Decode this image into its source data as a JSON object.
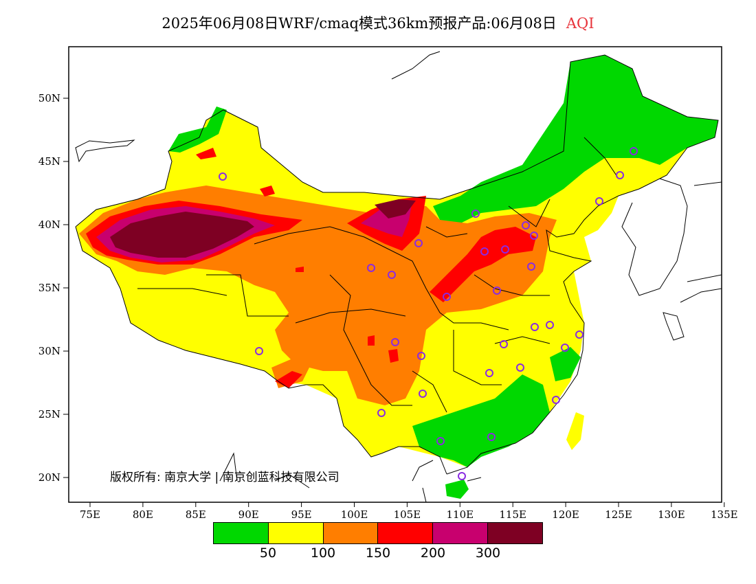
{
  "title": {
    "main": "2025年06月08日WRF/cmaq模式36km预报产品:06月08日",
    "variable": "AQI",
    "variable_color": "#e8333a"
  },
  "lat_ticks": [
    "50N",
    "45N",
    "40N",
    "35N",
    "30N",
    "25N",
    "20N"
  ],
  "lon_ticks": [
    "75E",
    "80E",
    "85E",
    "90E",
    "95E",
    "100E",
    "105E",
    "110E",
    "115E",
    "120E",
    "125E",
    "130E",
    "135E"
  ],
  "copyright": "版权所有: 南京大学 | 南京创蓝科技有限公司",
  "legend": {
    "colors": [
      "#00d800",
      "#ffff00",
      "#ff7e00",
      "#ff0000",
      "#c8006e",
      "#7e0023"
    ],
    "labels": [
      "50",
      "100",
      "150",
      "200",
      "300"
    ]
  },
  "colors": {
    "land": "#ffffff",
    "border": "#000000",
    "station": "#8a2be2"
  }
}
